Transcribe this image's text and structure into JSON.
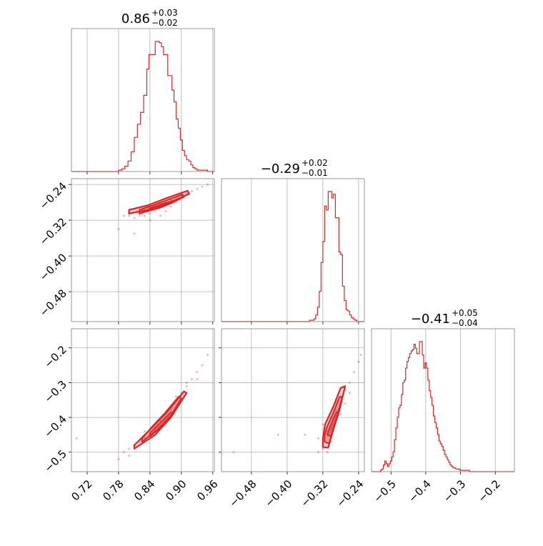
{
  "chart_data": {
    "type": "corner",
    "color": "#d62728",
    "grid": true,
    "titles": [
      {
        "value": "0.86",
        "plus": "+0.03",
        "minus": "−0.02"
      },
      {
        "value": "−0.29",
        "plus": "+0.02",
        "minus": "−0.01"
      },
      {
        "value": "−0.41",
        "plus": "+0.05",
        "minus": "−0.04"
      }
    ],
    "params": [
      {
        "range": [
          0.69,
          0.963
        ],
        "ticks": [
          0.72,
          0.78,
          0.84,
          0.9,
          0.96
        ],
        "tick_labels": [
          "0.72",
          "0.78",
          "0.84",
          "0.90",
          "0.96"
        ]
      },
      {
        "range": [
          -0.547,
          -0.227
        ],
        "ticks": [
          -0.48,
          -0.4,
          -0.32,
          -0.24
        ],
        "tick_labels": [
          "−0.48",
          "−0.40",
          "−0.32",
          "−0.24"
        ]
      },
      {
        "range": [
          -0.556,
          -0.145
        ],
        "ticks": [
          -0.5,
          -0.4,
          -0.3,
          -0.2
        ],
        "tick_labels": [
          "−0.5",
          "−0.4",
          "−0.3",
          "−0.2"
        ]
      }
    ],
    "histograms": [
      {
        "param": 0,
        "edges": [
          0.69,
          0.72,
          0.75,
          0.78,
          0.786,
          0.792,
          0.798,
          0.804,
          0.81,
          0.816,
          0.822,
          0.828,
          0.834,
          0.838,
          0.842,
          0.846,
          0.85,
          0.854,
          0.858,
          0.862,
          0.866,
          0.87,
          0.874,
          0.878,
          0.882,
          0.886,
          0.89,
          0.894,
          0.898,
          0.902,
          0.906,
          0.91,
          0.914,
          0.918,
          0.922,
          0.926,
          0.93,
          0.94,
          0.95,
          0.963
        ],
        "counts": [
          0,
          0,
          0,
          1,
          2,
          4,
          8,
          15,
          26,
          36,
          45,
          58,
          78,
          89,
          89,
          89,
          99,
          99,
          98,
          95,
          89,
          89,
          73,
          73,
          62,
          53,
          40,
          33,
          24,
          16,
          12,
          9,
          8,
          5,
          3,
          2,
          1,
          1,
          0
        ]
      },
      {
        "param": 1,
        "edges": [
          -0.547,
          -0.35,
          -0.34,
          -0.336,
          -0.332,
          -0.328,
          -0.324,
          -0.32,
          -0.316,
          -0.312,
          -0.308,
          -0.304,
          -0.3,
          -0.296,
          -0.292,
          -0.288,
          -0.284,
          -0.28,
          -0.276,
          -0.272,
          -0.268,
          -0.264,
          -0.26,
          -0.256,
          -0.252,
          -0.248,
          -0.244,
          -0.24,
          -0.236,
          -0.232,
          -0.227
        ],
        "counts": [
          0,
          1,
          2,
          5,
          11,
          23,
          45,
          61,
          88,
          85,
          99,
          99,
          94,
          97,
          79,
          79,
          53,
          51,
          27,
          16,
          9,
          8,
          5,
          3,
          2,
          1,
          0,
          0,
          0,
          0
        ]
      },
      {
        "param": 2,
        "edges": [
          -0.556,
          -0.53,
          -0.526,
          -0.522,
          -0.518,
          -0.514,
          -0.51,
          -0.506,
          -0.502,
          -0.498,
          -0.494,
          -0.49,
          -0.486,
          -0.482,
          -0.478,
          -0.474,
          -0.47,
          -0.466,
          -0.462,
          -0.458,
          -0.454,
          -0.45,
          -0.446,
          -0.442,
          -0.438,
          -0.434,
          -0.43,
          -0.426,
          -0.422,
          -0.418,
          -0.414,
          -0.41,
          -0.406,
          -0.402,
          -0.398,
          -0.394,
          -0.39,
          -0.386,
          -0.382,
          -0.378,
          -0.374,
          -0.37,
          -0.366,
          -0.362,
          -0.358,
          -0.354,
          -0.35,
          -0.346,
          -0.342,
          -0.338,
          -0.334,
          -0.33,
          -0.326,
          -0.322,
          -0.318,
          -0.314,
          -0.31,
          -0.306,
          -0.302,
          -0.298,
          -0.294,
          -0.29,
          -0.286,
          -0.282,
          -0.278,
          -0.274,
          -0.27,
          -0.266,
          -0.262,
          -0.258,
          -0.254,
          -0.25,
          -0.23,
          -0.21,
          -0.19,
          -0.17,
          -0.145
        ],
        "counts": [
          0,
          1,
          2,
          5,
          8,
          6,
          4,
          6,
          8,
          11,
          15,
          24,
          33,
          41,
          48,
          50,
          58,
          67,
          69,
          78,
          83,
          86,
          89,
          91,
          92,
          96,
          93,
          89,
          89,
          98,
          98,
          88,
          78,
          82,
          78,
          69,
          61,
          56,
          50,
          42,
          37,
          33,
          28,
          23,
          21,
          19,
          16,
          13,
          11,
          9,
          7,
          5,
          4,
          3,
          3,
          2,
          2,
          2,
          1,
          1,
          1,
          1,
          1,
          1,
          1,
          0,
          0,
          0,
          0,
          0,
          0,
          0,
          0,
          0,
          0,
          0
        ]
      }
    ],
    "pairs": [
      {
        "x_param": 0,
        "y_param": 1,
        "points": [
          [
            0.79,
            -0.31
          ],
          [
            0.8,
            -0.31
          ],
          [
            0.8,
            -0.305
          ],
          [
            0.81,
            -0.315
          ],
          [
            0.815,
            -0.3
          ],
          [
            0.82,
            -0.31
          ],
          [
            0.82,
            -0.305
          ],
          [
            0.825,
            -0.305
          ],
          [
            0.83,
            -0.3
          ],
          [
            0.835,
            -0.3
          ],
          [
            0.84,
            -0.295
          ],
          [
            0.84,
            -0.305
          ],
          [
            0.845,
            -0.295
          ],
          [
            0.85,
            -0.29
          ],
          [
            0.85,
            -0.3
          ],
          [
            0.855,
            -0.29
          ],
          [
            0.86,
            -0.29
          ],
          [
            0.86,
            -0.285
          ],
          [
            0.865,
            -0.285
          ],
          [
            0.87,
            -0.28
          ],
          [
            0.875,
            -0.28
          ],
          [
            0.88,
            -0.275
          ],
          [
            0.885,
            -0.275
          ],
          [
            0.89,
            -0.27
          ],
          [
            0.895,
            -0.27
          ],
          [
            0.9,
            -0.265
          ],
          [
            0.91,
            -0.26
          ],
          [
            0.92,
            -0.255
          ],
          [
            0.93,
            -0.25
          ],
          [
            0.94,
            -0.245
          ],
          [
            0.95,
            -0.24
          ],
          [
            0.81,
            -0.35
          ],
          [
            0.78,
            -0.34
          ],
          [
            0.84,
            -0.32
          ],
          [
            0.85,
            -0.28
          ],
          [
            0.87,
            -0.3
          ],
          [
            0.86,
            -0.31
          ],
          [
            0.88,
            -0.29
          ],
          [
            0.83,
            -0.31
          ],
          [
            0.89,
            -0.28
          ]
        ],
        "contours": [
          [
            [
              0.8,
              -0.305
            ],
            [
              0.84,
              -0.296
            ],
            [
              0.88,
              -0.28
            ],
            [
              0.915,
              -0.261
            ],
            [
              0.912,
              -0.254
            ],
            [
              0.875,
              -0.269
            ],
            [
              0.835,
              -0.287
            ],
            [
              0.8,
              -0.297
            ]
          ],
          [
            [
              0.82,
              -0.305
            ],
            [
              0.85,
              -0.295
            ],
            [
              0.88,
              -0.282
            ],
            [
              0.905,
              -0.268
            ],
            [
              0.902,
              -0.262
            ],
            [
              0.875,
              -0.274
            ],
            [
              0.845,
              -0.287
            ],
            [
              0.82,
              -0.297
            ]
          ],
          [
            [
              0.835,
              -0.3
            ],
            [
              0.86,
              -0.292
            ],
            [
              0.885,
              -0.28
            ],
            [
              0.89,
              -0.275
            ],
            [
              0.865,
              -0.283
            ],
            [
              0.84,
              -0.293
            ]
          ]
        ]
      },
      {
        "x_param": 0,
        "y_param": 2,
        "points": [
          [
            0.79,
            -0.5
          ],
          [
            0.8,
            -0.49
          ],
          [
            0.81,
            -0.48
          ],
          [
            0.82,
            -0.47
          ],
          [
            0.83,
            -0.46
          ],
          [
            0.84,
            -0.45
          ],
          [
            0.85,
            -0.43
          ],
          [
            0.86,
            -0.41
          ],
          [
            0.87,
            -0.39
          ],
          [
            0.88,
            -0.37
          ],
          [
            0.89,
            -0.35
          ],
          [
            0.9,
            -0.33
          ],
          [
            0.91,
            -0.31
          ],
          [
            0.92,
            -0.29
          ],
          [
            0.93,
            -0.27
          ],
          [
            0.94,
            -0.25
          ],
          [
            0.95,
            -0.22
          ],
          [
            0.78,
            -0.52
          ],
          [
            0.8,
            -0.51
          ],
          [
            0.83,
            -0.44
          ],
          [
            0.86,
            -0.43
          ],
          [
            0.88,
            -0.38
          ],
          [
            0.91,
            -0.3
          ],
          [
            0.93,
            -0.29
          ],
          [
            0.7,
            -0.46
          ],
          [
            0.85,
            -0.44
          ],
          [
            0.87,
            -0.41
          ],
          [
            0.89,
            -0.34
          ]
        ],
        "contours": [
          [
            [
              0.81,
              -0.49
            ],
            [
              0.85,
              -0.45
            ],
            [
              0.88,
              -0.4
            ],
            [
              0.91,
              -0.33
            ],
            [
              0.905,
              -0.325
            ],
            [
              0.875,
              -0.38
            ],
            [
              0.84,
              -0.435
            ],
            [
              0.81,
              -0.48
            ]
          ],
          [
            [
              0.825,
              -0.47
            ],
            [
              0.855,
              -0.435
            ],
            [
              0.88,
              -0.395
            ],
            [
              0.9,
              -0.345
            ],
            [
              0.895,
              -0.34
            ],
            [
              0.87,
              -0.385
            ],
            [
              0.845,
              -0.425
            ],
            [
              0.825,
              -0.46
            ]
          ],
          [
            [
              0.84,
              -0.455
            ],
            [
              0.86,
              -0.43
            ],
            [
              0.885,
              -0.39
            ],
            [
              0.88,
              -0.385
            ],
            [
              0.86,
              -0.415
            ],
            [
              0.84,
              -0.445
            ]
          ]
        ]
      },
      {
        "x_param": 1,
        "y_param": 2,
        "points": [
          [
            -0.33,
            -0.5
          ],
          [
            -0.32,
            -0.49
          ],
          [
            -0.32,
            -0.48
          ],
          [
            -0.31,
            -0.45
          ],
          [
            -0.31,
            -0.44
          ],
          [
            -0.3,
            -0.42
          ],
          [
            -0.3,
            -0.4
          ],
          [
            -0.29,
            -0.38
          ],
          [
            -0.29,
            -0.36
          ],
          [
            -0.28,
            -0.34
          ],
          [
            -0.27,
            -0.32
          ],
          [
            -0.26,
            -0.3
          ],
          [
            -0.25,
            -0.27
          ],
          [
            -0.24,
            -0.24
          ],
          [
            -0.235,
            -0.22
          ],
          [
            -0.42,
            -0.45
          ],
          [
            -0.52,
            -0.5
          ],
          [
            -0.36,
            -0.45
          ],
          [
            -0.33,
            -0.46
          ],
          [
            -0.3,
            -0.43
          ],
          [
            -0.28,
            -0.39
          ],
          [
            -0.32,
            -0.42
          ],
          [
            -0.27,
            -0.36
          ],
          [
            -0.26,
            -0.33
          ],
          [
            -0.31,
            -0.5
          ],
          [
            -0.3,
            -0.47
          ]
        ],
        "contours": [
          [
            [
              -0.32,
              -0.485
            ],
            [
              -0.308,
              -0.487
            ],
            [
              -0.3,
              -0.45
            ],
            [
              -0.283,
              -0.38
            ],
            [
              -0.27,
              -0.31
            ],
            [
              -0.28,
              -0.315
            ],
            [
              -0.297,
              -0.37
            ],
            [
              -0.315,
              -0.42
            ],
            [
              -0.32,
              -0.46
            ]
          ],
          [
            [
              -0.316,
              -0.47
            ],
            [
              -0.306,
              -0.475
            ],
            [
              -0.298,
              -0.44
            ],
            [
              -0.287,
              -0.39
            ],
            [
              -0.276,
              -0.34
            ],
            [
              -0.283,
              -0.342
            ],
            [
              -0.296,
              -0.385
            ],
            [
              -0.31,
              -0.425
            ],
            [
              -0.316,
              -0.45
            ]
          ],
          [
            [
              -0.31,
              -0.45
            ],
            [
              -0.302,
              -0.455
            ],
            [
              -0.294,
              -0.42
            ],
            [
              -0.285,
              -0.385
            ],
            [
              -0.29,
              -0.385
            ],
            [
              -0.3,
              -0.415
            ],
            [
              -0.308,
              -0.44
            ]
          ]
        ]
      }
    ]
  }
}
